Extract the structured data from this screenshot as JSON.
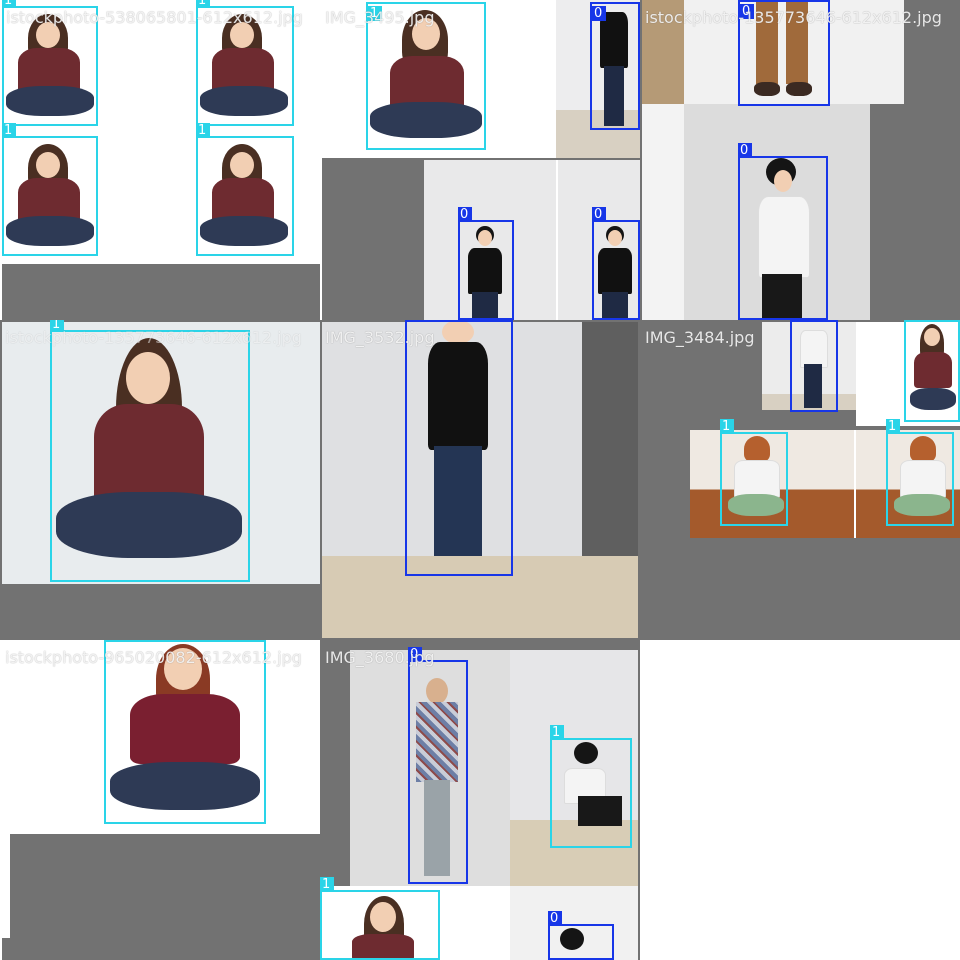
{
  "mosaic": {
    "filenames": {
      "t00": "istockphoto-538065801-612x612.jpg",
      "t01": "IMG_3495.jpg",
      "t02": "istockphoto-135773646-612x612.jpg",
      "t10": "istockphoto-135773646-612x612.jpg",
      "t11": "IMG_3532.jpg",
      "t12": "IMG_3484.jpg",
      "t20": "istockphoto-965020082-612x612.jpg",
      "t21": "IMG_3680.jpg"
    },
    "labels": {
      "c0": "0",
      "c1": "1"
    },
    "colors": {
      "class0": "#1736e8",
      "class1": "#2ad4e8",
      "pad_gray": "#727272"
    }
  }
}
